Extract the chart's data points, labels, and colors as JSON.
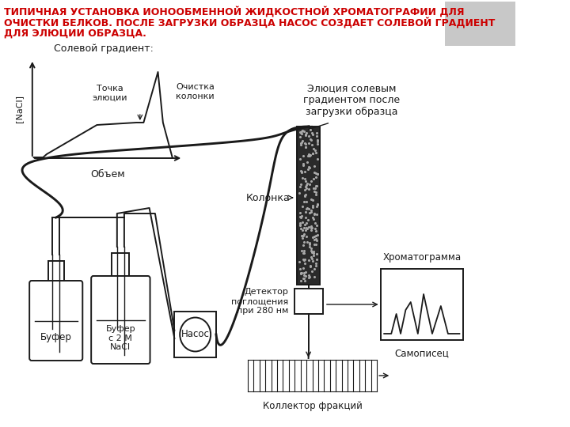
{
  "title_line1": "ТИПИЧНАЯ УСТАНОВКА ИОНООБМЕННОЙ ЖИДКОСТНОЙ ХРОМАТОГРАФИИ ДЛЯ",
  "title_line2": "ОЧИСТКИ БЕЛКОВ. ПОСЛЕ ЗАГРУЗКИ ОБРАЗЦА НАСОС СОЗДАЕТ СОЛЕВОЙ ГРАДИЕНТ",
  "title_line3": "ДЛЯ ЭЛЮЦИИ ОБРАЗЦА.",
  "title_color": "#cc0000",
  "bg_color": "#ffffff",
  "diagram_color": "#1a1a1a",
  "label_salt_gradient": "Солевой градиент:",
  "label_elution_point": "Точка\nэлюции",
  "label_column_clean": "Очистка\nколонки",
  "label_volume": "Объем",
  "label_nacl": "[NaCl]",
  "label_buffer1": "Буфер",
  "label_buffer2": "Буфер\nс 2 М\nNaCl",
  "label_pump": "Насос",
  "label_column": "Колонка",
  "label_detector": "Детектор\nпоглощения\nпри 280 нм",
  "label_chromatogram": "Хроматограмма",
  "label_recorder": "Самописец",
  "label_collector": "Коллектор фракций",
  "label_elution": "Элюция солевым\nградиентом после\nзагрузки образца"
}
